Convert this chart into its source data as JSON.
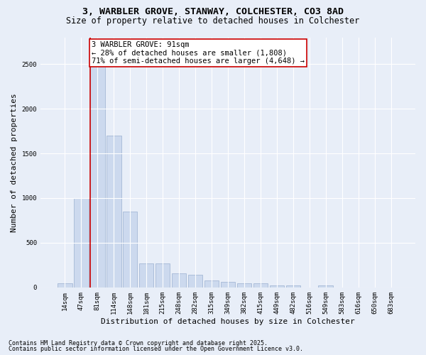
{
  "title_line1": "3, WARBLER GROVE, STANWAY, COLCHESTER, CO3 8AD",
  "title_line2": "Size of property relative to detached houses in Colchester",
  "xlabel": "Distribution of detached houses by size in Colchester",
  "ylabel": "Number of detached properties",
  "categories": [
    "14sqm",
    "47sqm",
    "81sqm",
    "114sqm",
    "148sqm",
    "181sqm",
    "215sqm",
    "248sqm",
    "282sqm",
    "315sqm",
    "349sqm",
    "382sqm",
    "415sqm",
    "449sqm",
    "482sqm",
    "516sqm",
    "549sqm",
    "583sqm",
    "616sqm",
    "650sqm",
    "683sqm"
  ],
  "values": [
    50,
    1000,
    2500,
    1700,
    850,
    270,
    265,
    160,
    140,
    75,
    65,
    50,
    45,
    25,
    20,
    0,
    25,
    0,
    0,
    0,
    0
  ],
  "bar_color": "#ccd9ee",
  "bar_edge_color": "#9ab0d0",
  "highlight_index": 2,
  "highlight_line_color": "#cc0000",
  "annotation_text": "3 WARBLER GROVE: 91sqm\n← 28% of detached houses are smaller (1,808)\n71% of semi-detached houses are larger (4,648) →",
  "annotation_box_color": "#ffffff",
  "annotation_box_edge": "#cc0000",
  "ylim": [
    0,
    2800
  ],
  "yticks": [
    0,
    500,
    1000,
    1500,
    2000,
    2500
  ],
  "footer_line1": "Contains HM Land Registry data © Crown copyright and database right 2025.",
  "footer_line2": "Contains public sector information licensed under the Open Government Licence v3.0.",
  "bg_color": "#e8eef8",
  "plot_bg_color": "#e8eef8",
  "title_fontsize": 9.5,
  "subtitle_fontsize": 8.5,
  "tick_fontsize": 6.5,
  "ylabel_fontsize": 8,
  "xlabel_fontsize": 8,
  "footer_fontsize": 6,
  "annotation_fontsize": 7.5
}
